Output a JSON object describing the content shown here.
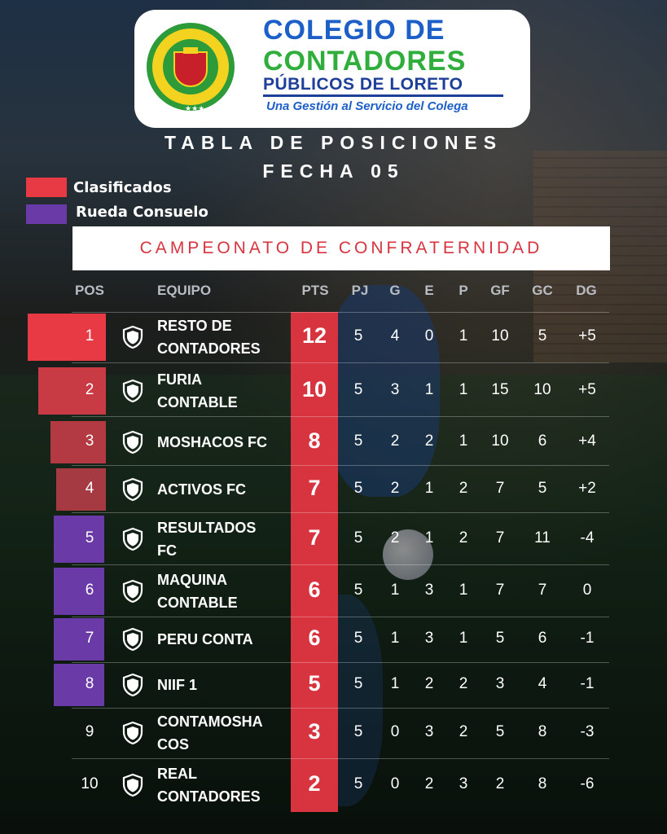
{
  "logo": {
    "title_line1": "COLEGIO DE",
    "title_line2": "CONTADORES",
    "title_line3": "PÚBLICOS DE LORETO",
    "tagline": "Una Gestión al Servicio del Colega",
    "seal_text": "COLEGIO DE CONTADORES PÚBLICOS DE LORETO"
  },
  "heading": {
    "line1": "TABLA DE POSICIONES",
    "line2": "FECHA 05"
  },
  "legend": [
    {
      "label": "Clasificados",
      "color": "#e83a44"
    },
    {
      "label": "Rueda Consuelo",
      "color": "#6a3aa6"
    }
  ],
  "banner": "CAMPEONATO DE CONFRATERNIDAD",
  "columns": [
    "POS",
    "EQUIPO",
    "PTS",
    "PJ",
    "G",
    "E",
    "P",
    "GF",
    "GC",
    "DG"
  ],
  "colors": {
    "pts_bar": "#d8343f",
    "clasificados": "#e83a44",
    "rueda_consuelo": "#6a3aa6"
  },
  "rows": [
    {
      "pos": "1",
      "team": [
        "RESTO DE",
        "CONTADORES"
      ],
      "pts": "12",
      "pj": "5",
      "g": "4",
      "e": "0",
      "p": "1",
      "gf": "10",
      "gc": "5",
      "dg": "+5",
      "group": "clasificados"
    },
    {
      "pos": "2",
      "team": [
        "FURIA",
        "CONTABLE"
      ],
      "pts": "10",
      "pj": "5",
      "g": "3",
      "e": "1",
      "p": "1",
      "gf": "15",
      "gc": "10",
      "dg": "+5",
      "group": "clasificados"
    },
    {
      "pos": "3",
      "team": [
        "MOSHACOS FC"
      ],
      "pts": "8",
      "pj": "5",
      "g": "2",
      "e": "2",
      "p": "1",
      "gf": "10",
      "gc": "6",
      "dg": "+4",
      "group": "clasificados"
    },
    {
      "pos": "4",
      "team": [
        "ACTIVOS FC"
      ],
      "pts": "7",
      "pj": "5",
      "g": "2",
      "e": "1",
      "p": "2",
      "gf": "7",
      "gc": "5",
      "dg": "+2",
      "group": "clasificados"
    },
    {
      "pos": "5",
      "team": [
        "RESULTADOS",
        "FC"
      ],
      "pts": "7",
      "pj": "5",
      "g": "2",
      "e": "1",
      "p": "2",
      "gf": "7",
      "gc": "11",
      "dg": "-4",
      "group": "rueda_consuelo"
    },
    {
      "pos": "6",
      "team": [
        "MAQUINA",
        "CONTABLE"
      ],
      "pts": "6",
      "pj": "5",
      "g": "1",
      "e": "3",
      "p": "1",
      "gf": "7",
      "gc": "7",
      "dg": "0",
      "group": "rueda_consuelo"
    },
    {
      "pos": "7",
      "team": [
        "PERU CONTA"
      ],
      "pts": "6",
      "pj": "5",
      "g": "1",
      "e": "3",
      "p": "1",
      "gf": "5",
      "gc": "6",
      "dg": "-1",
      "group": "rueda_consuelo"
    },
    {
      "pos": "8",
      "team": [
        "NIIF 1"
      ],
      "pts": "5",
      "pj": "5",
      "g": "1",
      "e": "2",
      "p": "2",
      "gf": "3",
      "gc": "4",
      "dg": "-1",
      "group": "rueda_consuelo"
    },
    {
      "pos": "9",
      "team": [
        "CONTAMOSHA",
        "COS"
      ],
      "pts": "3",
      "pj": "5",
      "g": "0",
      "e": "3",
      "p": "2",
      "gf": "5",
      "gc": "8",
      "dg": "-3",
      "group": "none"
    },
    {
      "pos": "10",
      "team": [
        "REAL",
        "CONTADORES"
      ],
      "pts": "2",
      "pj": "5",
      "g": "0",
      "e": "2",
      "p": "3",
      "gf": "2",
      "gc": "8",
      "dg": "-6",
      "group": "none"
    }
  ]
}
